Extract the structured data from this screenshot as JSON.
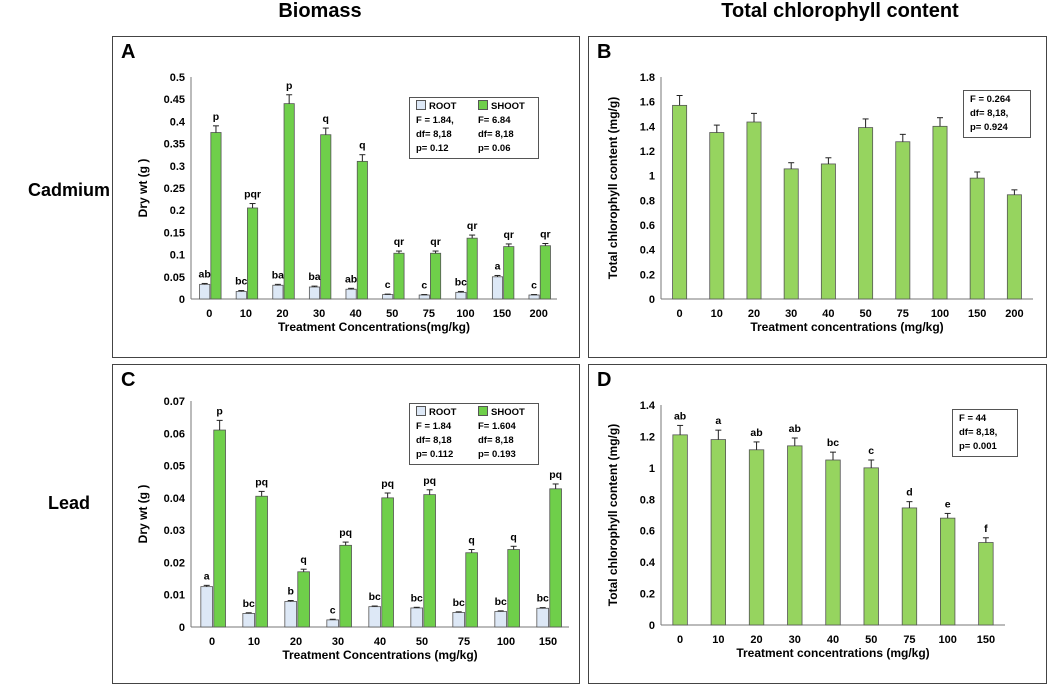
{
  "headings": {
    "col_left": "Biomass",
    "col_right": "Total chlorophyll content",
    "row_top": "Cadmium",
    "row_bottom": "Lead"
  },
  "colors": {
    "root": "#dde8f6",
    "shoot": "#6fcf4a",
    "chl": "#96d45f",
    "bar_stroke": "#555555"
  },
  "chart_data": [
    {
      "id": "A",
      "type": "bar",
      "metal": "Cadmium",
      "title": "",
      "xlabel": "Treatment Concentrations(mg/kg)",
      "ylabel": "Dry wt (g )",
      "categories": [
        "0",
        "10",
        "20",
        "30",
        "40",
        "50",
        "75",
        "100",
        "150",
        "200"
      ],
      "ylim": [
        0,
        0.5
      ],
      "yticks": [
        "0",
        "0.05",
        "0.1",
        "0.15",
        "0.2",
        "0.25",
        "0.3",
        "0.35",
        "0.4",
        "0.45",
        "0.5"
      ],
      "series": [
        {
          "name": "ROOT",
          "values": [
            0.033,
            0.017,
            0.031,
            0.027,
            0.022,
            0.01,
            0.009,
            0.015,
            0.05,
            0.009
          ],
          "errors": [
            0.002,
            0.002,
            0.002,
            0.002,
            0.002,
            0.001,
            0.001,
            0.002,
            0.003,
            0.001
          ],
          "labels": [
            "ab",
            "bc",
            "ba",
            "ba",
            "ab",
            "c",
            "c",
            "bc",
            "a",
            "c"
          ]
        },
        {
          "name": "SHOOT",
          "values": [
            0.375,
            0.205,
            0.44,
            0.37,
            0.31,
            0.103,
            0.103,
            0.137,
            0.118,
            0.12
          ],
          "errors": [
            0.015,
            0.01,
            0.02,
            0.015,
            0.015,
            0.005,
            0.005,
            0.007,
            0.006,
            0.005
          ],
          "labels": [
            "p",
            "pqr",
            "p",
            "q",
            "q",
            "qr",
            "qr",
            "qr",
            "qr",
            "qr"
          ]
        }
      ],
      "stats": {
        "root": [
          "ROOT",
          "F = 1.84,",
          "df= 8,18",
          "p= 0.12"
        ],
        "shoot": [
          "SHOOT",
          "F= 6.84",
          "df= 8,18",
          "p= 0.06"
        ]
      }
    },
    {
      "id": "B",
      "type": "bar",
      "metal": "Cadmium",
      "title": "",
      "xlabel": "Treatment concentrations (mg/kg)",
      "ylabel": "Total chlorophyll content (mg/g)",
      "categories": [
        "0",
        "10",
        "20",
        "30",
        "40",
        "50",
        "75",
        "100",
        "150",
        "200"
      ],
      "ylim": [
        0,
        1.8
      ],
      "yticks": [
        "0",
        "0.2",
        "0.4",
        "0.6",
        "0.8",
        "1",
        "1.2",
        "1.4",
        "1.6",
        "1.8"
      ],
      "series": [
        {
          "name": "Total chlorophyll",
          "values": [
            1.57,
            1.35,
            1.435,
            1.055,
            1.095,
            1.39,
            1.275,
            1.4,
            0.98,
            0.845
          ],
          "errors": [
            0.08,
            0.06,
            0.07,
            0.05,
            0.05,
            0.07,
            0.06,
            0.07,
            0.05,
            0.04
          ],
          "labels": []
        }
      ],
      "stats": {
        "single": [
          "F = 0.264",
          "df= 8,18,",
          "p= 0.924"
        ]
      }
    },
    {
      "id": "C",
      "type": "bar",
      "metal": "Lead",
      "title": "",
      "xlabel": "Treatment Concentrations (mg/kg)",
      "ylabel": "Dry wt (g )",
      "categories": [
        "0",
        "10",
        "20",
        "30",
        "40",
        "50",
        "75",
        "100",
        "150"
      ],
      "ylim": [
        0,
        0.07
      ],
      "yticks": [
        "0",
        "0.01",
        "0.02",
        "0.03",
        "0.04",
        "0.05",
        "0.06",
        "0.07"
      ],
      "series": [
        {
          "name": "ROOT",
          "values": [
            0.0125,
            0.0042,
            0.0079,
            0.0022,
            0.0063,
            0.0059,
            0.0045,
            0.0048,
            0.0058
          ],
          "errors": [
            0.0004,
            0.0002,
            0.0003,
            0.0002,
            0.0002,
            0.0002,
            0.0002,
            0.0002,
            0.0002
          ],
          "labels": [
            "a",
            "bc",
            "b",
            "c",
            "bc",
            "bc",
            "bc",
            "bc",
            "bc"
          ]
        },
        {
          "name": "SHOOT",
          "values": [
            0.061,
            0.0405,
            0.0171,
            0.0253,
            0.04,
            0.041,
            0.023,
            0.024,
            0.0428
          ],
          "errors": [
            0.003,
            0.0015,
            0.0008,
            0.001,
            0.0015,
            0.0015,
            0.001,
            0.001,
            0.0015
          ],
          "labels": [
            "p",
            "pq",
            "q",
            "pq",
            "pq",
            "pq",
            "q",
            "q",
            "pq"
          ]
        }
      ],
      "stats": {
        "root": [
          "ROOT",
          "F = 1.84",
          "df= 8,18",
          "p= 0.112"
        ],
        "shoot": [
          "SHOOT",
          "F= 1.604",
          "df= 8,18",
          "p= 0.193"
        ]
      }
    },
    {
      "id": "D",
      "type": "bar",
      "metal": "Lead",
      "title": "",
      "xlabel": "Treatment concentrations (mg/kg)",
      "ylabel": "Total chlorophyll content (mg/g)",
      "categories": [
        "0",
        "10",
        "20",
        "30",
        "40",
        "50",
        "75",
        "100",
        "150"
      ],
      "ylim": [
        0,
        1.4
      ],
      "yticks": [
        "0",
        "0.2",
        "0.4",
        "0.6",
        "0.8",
        "1",
        "1.2",
        "1.4"
      ],
      "series": [
        {
          "name": "Total chlorophyll",
          "values": [
            1.21,
            1.18,
            1.115,
            1.14,
            1.05,
            1.0,
            0.745,
            0.68,
            0.525
          ],
          "errors": [
            0.06,
            0.06,
            0.05,
            0.05,
            0.05,
            0.05,
            0.04,
            0.03,
            0.03
          ],
          "labels": [
            "ab",
            "a",
            "ab",
            "ab",
            "bc",
            "c",
            "d",
            "e",
            "f"
          ]
        }
      ],
      "stats": {
        "single": [
          "F = 44",
          "df= 8,18,",
          "p= 0.001"
        ]
      }
    }
  ]
}
